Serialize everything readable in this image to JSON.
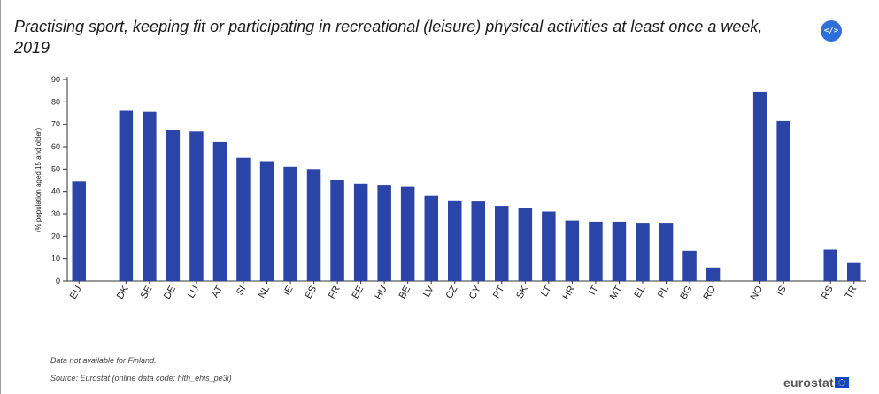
{
  "header": {
    "title": "Practising sport, keeping fit or participating in recreational (leisure) physical activities at least once a week, 2019",
    "embed_label": "</>"
  },
  "footer": {
    "note": "Data not available for Finland.",
    "source": "Source: Eurostat (online data code: hlth_ehis_pe3i)",
    "logo_text": "eurostat"
  },
  "colors": {
    "bar": "#2a44a8",
    "axis": "#333333",
    "embed_button": "#2f6fdc"
  },
  "chart_data": {
    "type": "bar",
    "title": "Practising sport, keeping fit or participating in recreational (leisure) physical activities at least once a week, 2019",
    "xlabel": "",
    "ylabel": "(% population aged 15 and older)",
    "ylim": [
      0,
      90
    ],
    "yticks": [
      0,
      10,
      20,
      30,
      40,
      50,
      60,
      70,
      80,
      90
    ],
    "grid": false,
    "legend": "none",
    "categories": [
      "EU",
      "",
      "DK",
      "SE",
      "DE",
      "LU",
      "AT",
      "SI",
      "NL",
      "IE",
      "ES",
      "FR",
      "EE",
      "HU",
      "BE",
      "LV",
      "CZ",
      "CY",
      "PT",
      "SK",
      "LT",
      "HR",
      "IT",
      "MT",
      "EL",
      "PL",
      "BG",
      "RO",
      "",
      "NO",
      "IS",
      "",
      "RS",
      "TR"
    ],
    "values": [
      44.5,
      null,
      76,
      75.5,
      67.5,
      67,
      62,
      55,
      53.5,
      51,
      50,
      45,
      43.5,
      43,
      42,
      38,
      36,
      35.5,
      33.5,
      32.5,
      31,
      27,
      26.5,
      26.5,
      26,
      26,
      13.5,
      6,
      null,
      84.5,
      71.5,
      null,
      14,
      8
    ]
  }
}
